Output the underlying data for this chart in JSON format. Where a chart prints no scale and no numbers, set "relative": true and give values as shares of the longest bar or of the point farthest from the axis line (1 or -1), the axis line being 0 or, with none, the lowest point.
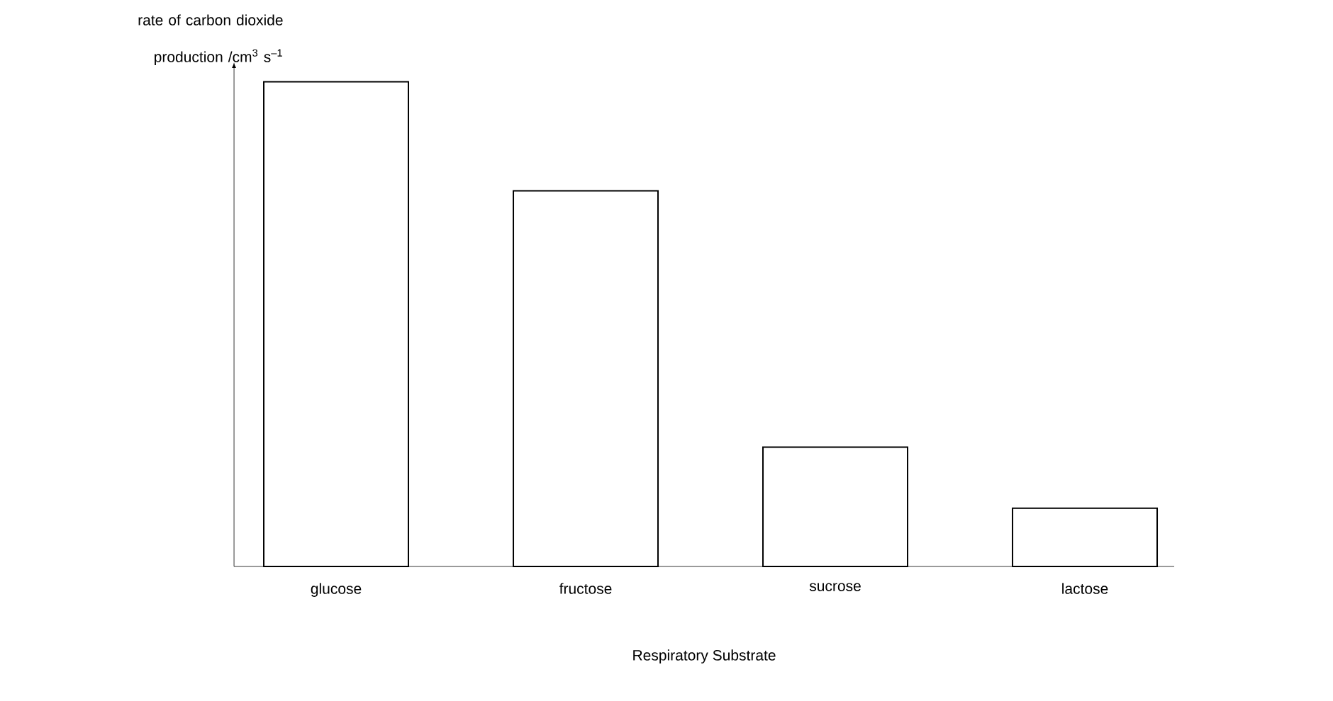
{
  "chart_data": {
    "type": "bar",
    "relative": true,
    "categories": [
      "glucose",
      "fructose",
      "sucrose",
      "lactose"
    ],
    "values": [
      1,
      0.775,
      0.246,
      0.12
    ],
    "color": "#ffffff",
    "xlabel": "Respiratory Substrate",
    "ylabel": "rate of carbon dioxide production /cm$^{3}$ s$^{–1}$"
  }
}
